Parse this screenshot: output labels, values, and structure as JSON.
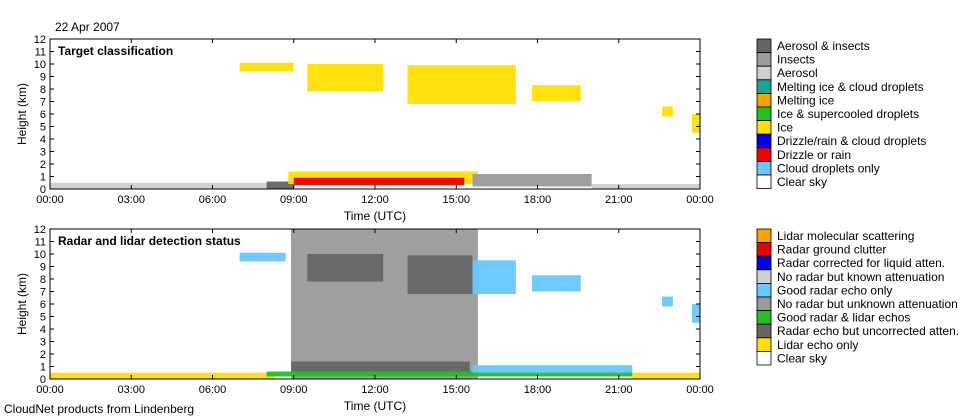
{
  "date": "22 Apr 2007",
  "footer": "CloudNet products from Lindenberg",
  "chart_data": [
    {
      "type": "heatmap",
      "title": "Target classification",
      "xlabel": "Time (UTC)",
      "ylabel": "Height (km)",
      "xlim": [
        0,
        24
      ],
      "ylim": [
        0,
        12
      ],
      "x_ticks": [
        "00:00",
        "03:00",
        "06:00",
        "09:00",
        "12:00",
        "15:00",
        "18:00",
        "21:00",
        "00:00"
      ],
      "y_ticks": [
        "0",
        "1",
        "2",
        "3",
        "4",
        "5",
        "6",
        "7",
        "8",
        "9",
        "10",
        "11",
        "12"
      ],
      "legend": [
        {
          "label": "Aerosol & insects",
          "color": "#666666"
        },
        {
          "label": "Insects",
          "color": "#9a9a9a"
        },
        {
          "label": "Aerosol",
          "color": "#cfcfcf"
        },
        {
          "label": "Melting ice & cloud droplets",
          "color": "#1aa39a"
        },
        {
          "label": "Melting ice",
          "color": "#f5a300"
        },
        {
          "label": "Ice & supercooled droplets",
          "color": "#1fc21f"
        },
        {
          "label": "Ice",
          "color": "#ffe000"
        },
        {
          "label": "Drizzle/rain & cloud droplets",
          "color": "#0000ee"
        },
        {
          "label": "Drizzle or rain",
          "color": "#ee0000"
        },
        {
          "label": "Cloud droplets only",
          "color": "#66c8ff"
        },
        {
          "label": "Clear sky",
          "color": "#ffffff"
        }
      ],
      "regions": [
        {
          "class": "Aerosol",
          "t0": 0.0,
          "t1": 8.3,
          "h0": 0.0,
          "h1": 0.5
        },
        {
          "class": "Aerosol & insects",
          "t0": 8.0,
          "t1": 9.0,
          "h0": 0.0,
          "h1": 0.6
        },
        {
          "class": "Ice",
          "t0": 8.8,
          "t1": 15.8,
          "h0": 0.4,
          "h1": 1.4
        },
        {
          "class": "Drizzle or rain",
          "t0": 9.0,
          "t1": 15.3,
          "h0": 0.3,
          "h1": 0.9
        },
        {
          "class": "Insects",
          "t0": 15.6,
          "t1": 20.0,
          "h0": 0.2,
          "h1": 1.2
        },
        {
          "class": "Aerosol",
          "t0": 20.0,
          "t1": 24.0,
          "h0": 0.0,
          "h1": 0.4
        },
        {
          "class": "Ice",
          "t0": 7.0,
          "t1": 9.0,
          "h0": 9.4,
          "h1": 10.1
        },
        {
          "class": "Ice",
          "t0": 9.5,
          "t1": 12.3,
          "h0": 7.8,
          "h1": 10.0
        },
        {
          "class": "Ice",
          "t0": 13.2,
          "t1": 17.2,
          "h0": 6.8,
          "h1": 9.9
        },
        {
          "class": "Ice",
          "t0": 17.8,
          "t1": 19.6,
          "h0": 7.0,
          "h1": 8.3
        },
        {
          "class": "Ice",
          "t0": 22.6,
          "t1": 23.0,
          "h0": 5.8,
          "h1": 6.6
        },
        {
          "class": "Ice",
          "t0": 23.7,
          "t1": 24.0,
          "h0": 4.5,
          "h1": 6.0
        }
      ]
    },
    {
      "type": "heatmap",
      "title": "Radar and lidar detection status",
      "xlabel": "Time (UTC)",
      "ylabel": "Height (km)",
      "xlim": [
        0,
        24
      ],
      "ylim": [
        0,
        12
      ],
      "x_ticks": [
        "00:00",
        "03:00",
        "06:00",
        "09:00",
        "12:00",
        "15:00",
        "18:00",
        "21:00",
        "00:00"
      ],
      "y_ticks": [
        "0",
        "1",
        "2",
        "3",
        "4",
        "5",
        "6",
        "7",
        "8",
        "9",
        "10",
        "11",
        "12"
      ],
      "legend": [
        {
          "label": "Lidar molecular scattering",
          "color": "#f5a300"
        },
        {
          "label": "Radar ground clutter",
          "color": "#ee0000"
        },
        {
          "label": "Radar corrected for liquid atten.",
          "color": "#0000ee"
        },
        {
          "label": "No radar but known attenuation",
          "color": "#cfcfcf"
        },
        {
          "label": "Good radar echo only",
          "color": "#66c8ff"
        },
        {
          "label": "No radar but unknown attenuation",
          "color": "#9a9a9a"
        },
        {
          "label": "Good radar & lidar echos",
          "color": "#1fc21f"
        },
        {
          "label": "Radar echo but uncorrected atten.",
          "color": "#666666"
        },
        {
          "label": "Lidar echo only",
          "color": "#ffe000"
        },
        {
          "label": "Clear sky",
          "color": "#ffffff"
        }
      ],
      "regions": [
        {
          "class": "Lidar echo only",
          "t0": 0.0,
          "t1": 8.3,
          "h0": 0.0,
          "h1": 0.5
        },
        {
          "class": "No radar but unknown attenuation",
          "t0": 8.9,
          "t1": 15.8,
          "h0": 0.0,
          "h1": 12.0
        },
        {
          "class": "Radar echo but uncorrected atten.",
          "t0": 8.9,
          "t1": 15.5,
          "h0": 0.4,
          "h1": 1.4
        },
        {
          "class": "Good radar & lidar echos",
          "t0": 8.0,
          "t1": 21.5,
          "h0": 0.2,
          "h1": 0.6
        },
        {
          "class": "Good radar echo only",
          "t0": 15.6,
          "t1": 21.5,
          "h0": 0.5,
          "h1": 1.1
        },
        {
          "class": "Lidar echo only",
          "t0": 21.5,
          "t1": 24.0,
          "h0": 0.0,
          "h1": 0.5
        },
        {
          "class": "Good radar echo only",
          "t0": 7.0,
          "t1": 8.7,
          "h0": 9.4,
          "h1": 10.1
        },
        {
          "class": "Radar echo but uncorrected atten.",
          "t0": 9.5,
          "t1": 12.3,
          "h0": 7.8,
          "h1": 10.0
        },
        {
          "class": "Radar echo but uncorrected atten.",
          "t0": 13.2,
          "t1": 15.6,
          "h0": 6.8,
          "h1": 9.9
        },
        {
          "class": "Good radar echo only",
          "t0": 15.6,
          "t1": 17.2,
          "h0": 6.8,
          "h1": 9.5
        },
        {
          "class": "Good radar echo only",
          "t0": 17.8,
          "t1": 19.6,
          "h0": 7.0,
          "h1": 8.3
        },
        {
          "class": "Good radar echo only",
          "t0": 22.6,
          "t1": 23.0,
          "h0": 5.8,
          "h1": 6.6
        },
        {
          "class": "Good radar echo only",
          "t0": 23.7,
          "t1": 24.0,
          "h0": 4.5,
          "h1": 6.0
        }
      ]
    }
  ]
}
